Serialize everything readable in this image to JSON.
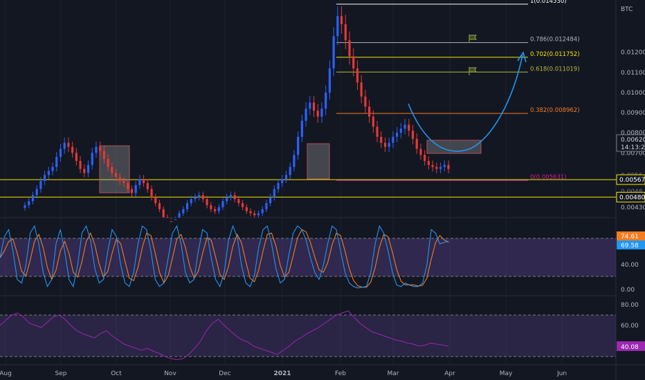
{
  "chart_data": {
    "type": "candlestick",
    "currency_label": "BTC",
    "price_axis": {
      "ylim": [
        0.00378,
        0.0146
      ],
      "ticks": [
        "0.012000",
        "0.011000",
        "0.010000",
        "0.009000",
        "0.008000",
        "0.007000",
        "0.004300"
      ],
      "current_price": "0.006200",
      "countdown": "14:13:22",
      "ticks_hidden": [
        "0.0056",
        "0.0048"
      ]
    },
    "time_axis": {
      "labels": [
        "Aug",
        "Sep",
        "Oct",
        "Nov",
        "Dec",
        "2021",
        "Feb",
        "Mar",
        "Apr",
        "May",
        "Jun"
      ]
    },
    "horizontal_levels": [
      {
        "label": "0.005670",
        "value": 0.00567,
        "color": "#f7e600"
      },
      {
        "label": "0.004800",
        "value": 0.0048,
        "color": "#f7e600"
      }
    ],
    "fibonacci": [
      {
        "label": "1(0.014530)",
        "value": 0.01453,
        "color": "#ffffff"
      },
      {
        "label": "0.786(0.012484)",
        "value": 0.012484,
        "color": "#b2b5be"
      },
      {
        "label": "0.702(0.011752)",
        "value": 0.011752,
        "color": "#f7e600"
      },
      {
        "label": "0.618(0.011019)",
        "value": 0.011019,
        "color": "#b8b840"
      },
      {
        "label": "0.382(0.008962)",
        "value": 0.008962,
        "color": "#f57c20"
      },
      {
        "label": "0(0.005631)",
        "value": 0.005631,
        "color": "#d81b9a"
      }
    ],
    "candles_close": [
      0.0044,
      0.0046,
      0.0049,
      0.0052,
      0.0056,
      0.0059,
      0.0061,
      0.0063,
      0.0068,
      0.0072,
      0.0075,
      0.0073,
      0.007,
      0.0066,
      0.0062,
      0.006,
      0.0064,
      0.007,
      0.0073,
      0.0071,
      0.0067,
      0.0063,
      0.006,
      0.0058,
      0.0056,
      0.0055,
      0.0052,
      0.005,
      0.0054,
      0.0057,
      0.0055,
      0.0052,
      0.0048,
      0.0045,
      0.0042,
      0.0038,
      0.0036,
      0.0035,
      0.0037,
      0.004,
      0.0042,
      0.0045,
      0.0047,
      0.0048,
      0.0049,
      0.0047,
      0.0044,
      0.0042,
      0.0041,
      0.0043,
      0.0046,
      0.0048,
      0.0049,
      0.0047,
      0.0045,
      0.0043,
      0.0041,
      0.004,
      0.0039,
      0.004,
      0.0042,
      0.0045,
      0.0048,
      0.0052,
      0.0055,
      0.0057,
      0.0059,
      0.0063,
      0.0069,
      0.0078,
      0.0086,
      0.0092,
      0.0095,
      0.0091,
      0.0088,
      0.0092,
      0.01,
      0.0112,
      0.0128,
      0.0138,
      0.0134,
      0.0126,
      0.0118,
      0.0112,
      0.0105,
      0.0098,
      0.0093,
      0.0088,
      0.0083,
      0.0078,
      0.0075,
      0.0073,
      0.0075,
      0.0078,
      0.008,
      0.0082,
      0.0084,
      0.0081,
      0.0077,
      0.0072,
      0.0069,
      0.0066,
      0.0064,
      0.0063,
      0.0062,
      0.0063,
      0.0064,
      0.0062
    ],
    "stoch_rsi": {
      "levels": [
        80,
        20
      ],
      "ticks": [
        "40.00",
        "0.00"
      ],
      "k_value": "74.61",
      "d_value": "69.58",
      "k_color": "#2196f3",
      "d_color": "#f57c20",
      "k": [
        50,
        80,
        90,
        60,
        20,
        15,
        40,
        85,
        95,
        70,
        30,
        10,
        20,
        70,
        90,
        60,
        20,
        10,
        40,
        85,
        95,
        75,
        35,
        15,
        20,
        60,
        90,
        80,
        40,
        15,
        10,
        30,
        70,
        95,
        90,
        60,
        20,
        10,
        15,
        50,
        85,
        95,
        70,
        30,
        15,
        20,
        60,
        90,
        85,
        50,
        20,
        10,
        30,
        75,
        95,
        80,
        40,
        15,
        10,
        25,
        65,
        90,
        95,
        70,
        35,
        15,
        20,
        55,
        85,
        95,
        90,
        75,
        50,
        30,
        20,
        40,
        70,
        95,
        90,
        60,
        30,
        15,
        10,
        8,
        9,
        10,
        30,
        70,
        95,
        85,
        60,
        30,
        12,
        10,
        15,
        12,
        10,
        10,
        15,
        40,
        90,
        85,
        70,
        72,
        74
      ]
    },
    "rsi": {
      "levels": [
        70,
        30
      ],
      "ticks": [
        "80.00",
        "60.00"
      ],
      "value": "40.08",
      "color": "#9c27b0",
      "values": [
        60,
        65,
        70,
        72,
        68,
        62,
        60,
        58,
        63,
        68,
        70,
        66,
        60,
        55,
        52,
        50,
        48,
        52,
        55,
        50,
        46,
        42,
        40,
        38,
        36,
        38,
        35,
        33,
        30,
        28,
        27,
        28,
        32,
        38,
        45,
        55,
        62,
        66,
        60,
        55,
        50,
        46,
        44,
        40,
        38,
        36,
        34,
        32,
        36,
        40,
        45,
        48,
        52,
        55,
        58,
        62,
        66,
        70,
        72,
        74,
        68,
        62,
        58,
        54,
        52,
        50,
        48,
        46,
        45,
        43,
        42,
        40,
        41,
        43,
        42,
        41,
        40
      ]
    }
  }
}
